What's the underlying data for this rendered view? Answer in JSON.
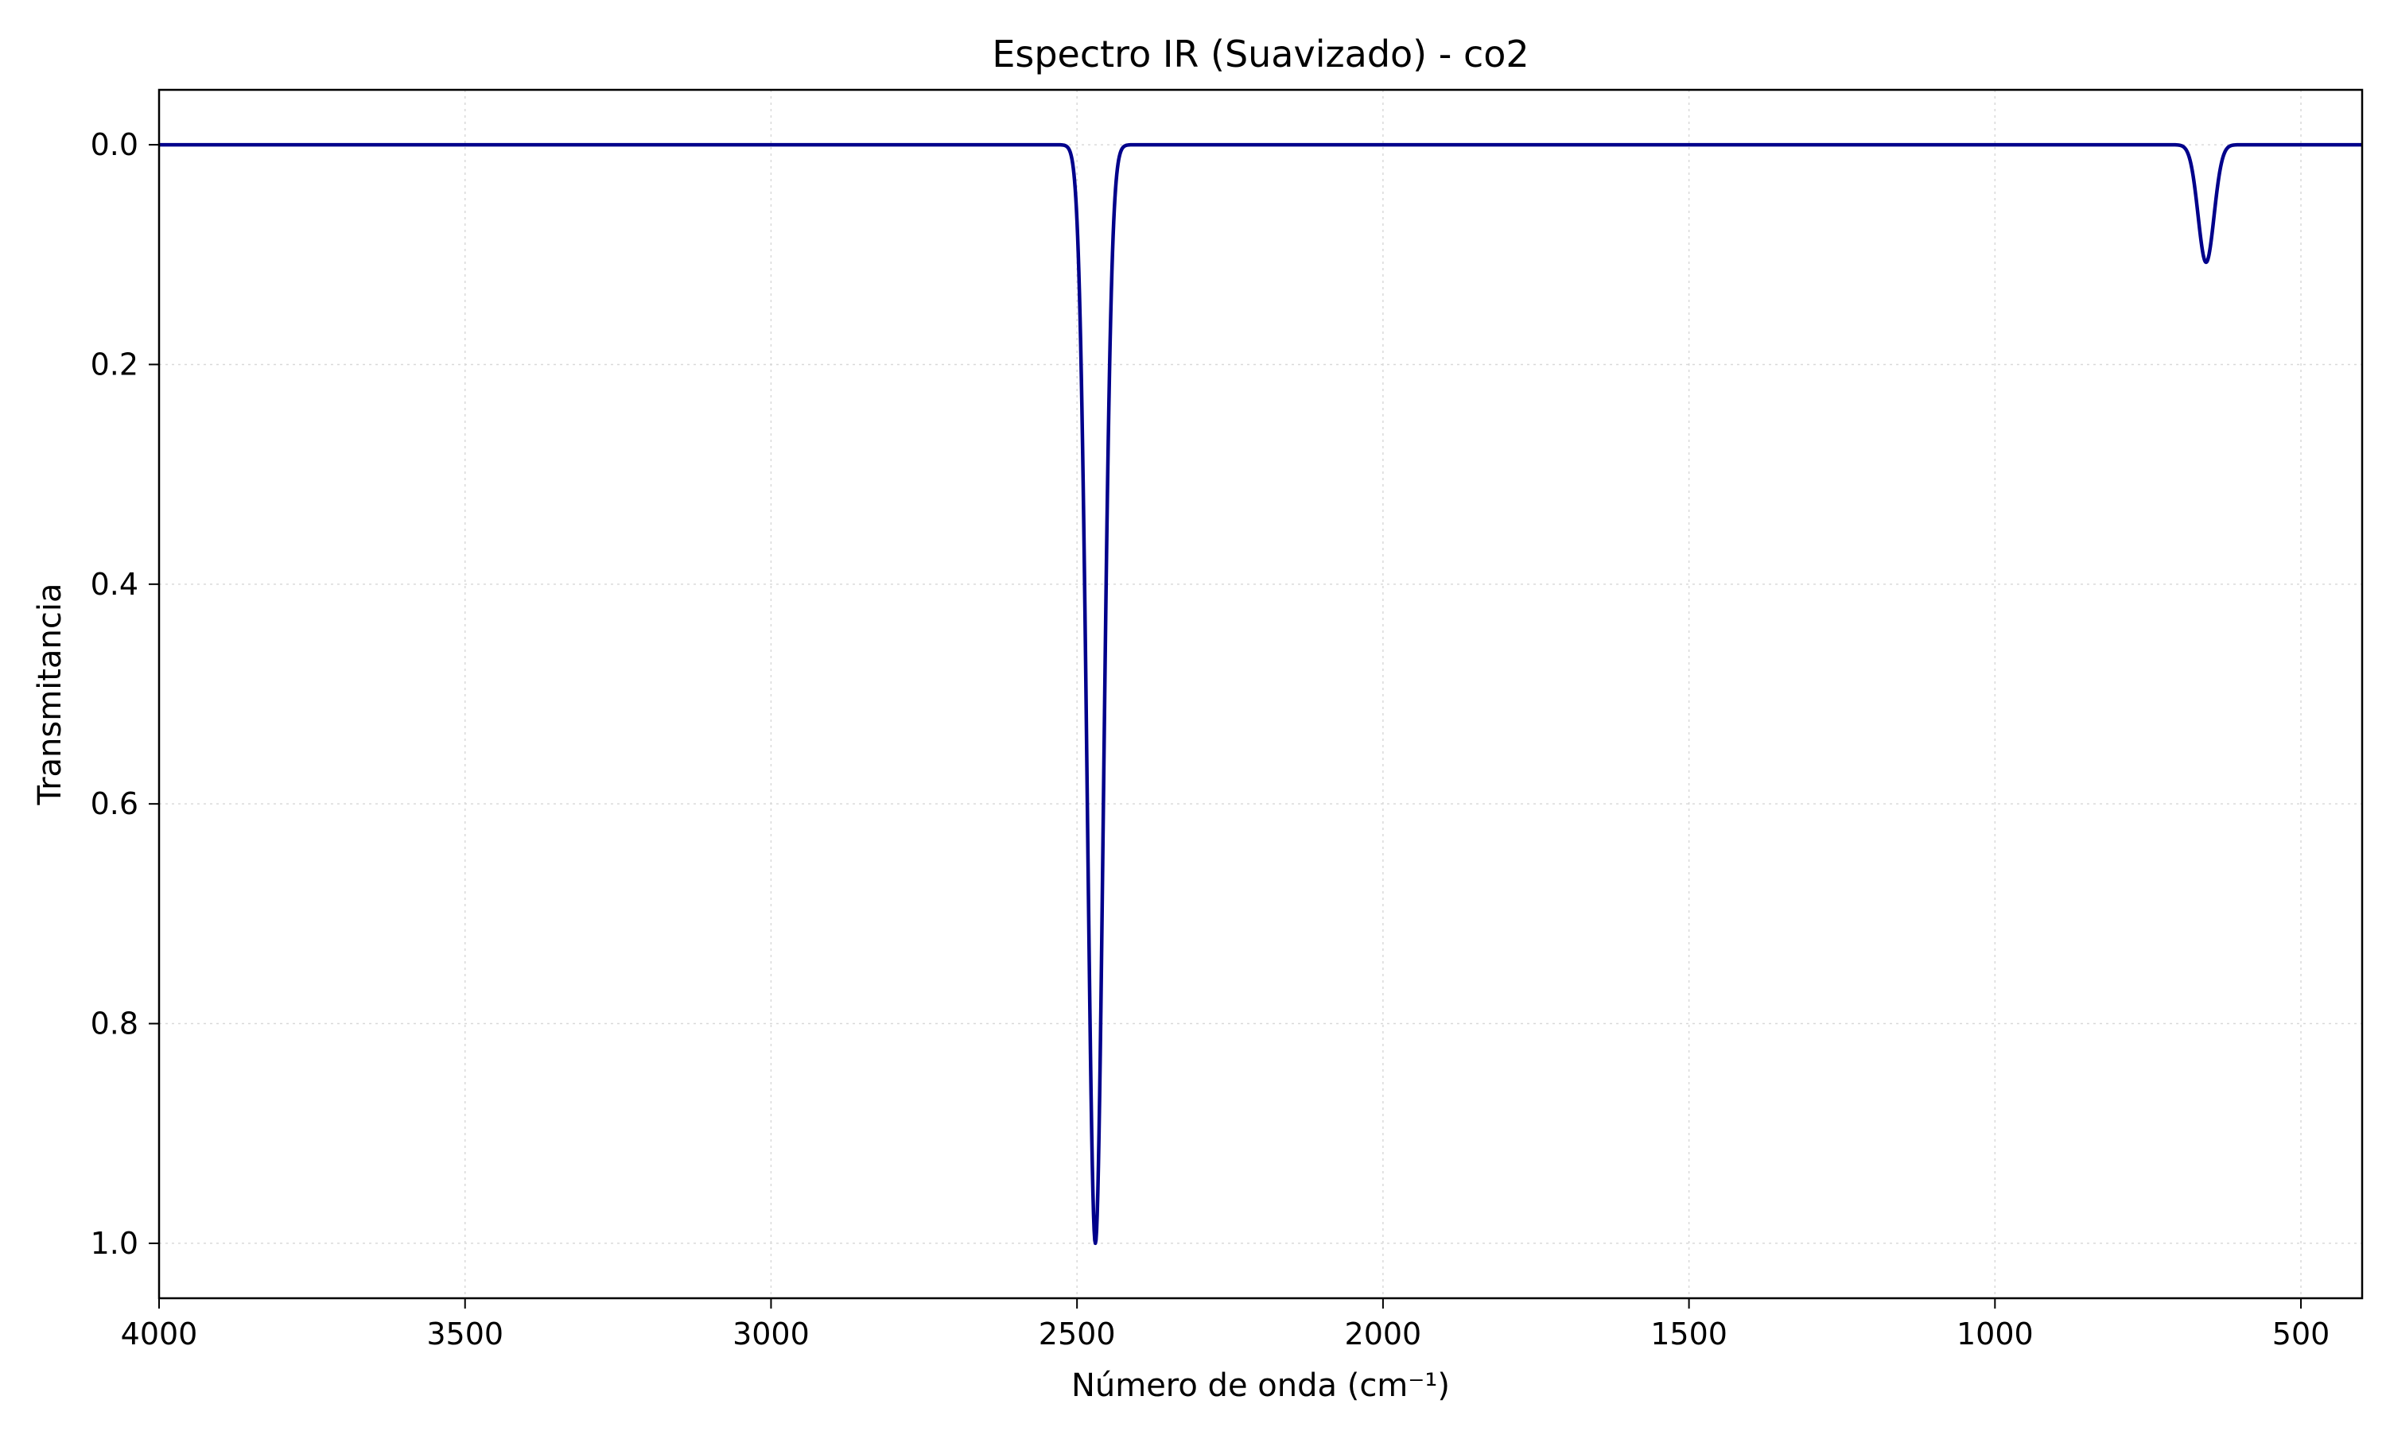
{
  "chart_data": {
    "type": "line",
    "title": "Espectro IR (Suavizado) - co2",
    "xlabel": "Número de onda (cm⁻¹)",
    "ylabel": "Transmitancia",
    "xlim": [
      4000,
      400
    ],
    "ylim": [
      1.05,
      -0.05
    ],
    "x_inverted": true,
    "y_inverted": true,
    "grid": true,
    "xticks": [
      4000,
      3500,
      3000,
      2500,
      2000,
      1500,
      1000,
      500
    ],
    "yticks": [
      0.0,
      0.2,
      0.4,
      0.6,
      0.8,
      1.0
    ],
    "xtick_labels": [
      "4000",
      "3500",
      "3000",
      "2500",
      "2000",
      "1500",
      "1000",
      "500"
    ],
    "ytick_labels": [
      "0.0",
      "0.2",
      "0.4",
      "0.6",
      "0.8",
      "1.0"
    ],
    "line_color": "#00008b",
    "grid_color": "#d9d9d9",
    "series": [
      {
        "peaks": [
          {
            "center": 2470,
            "depth": 1.0,
            "width": 13
          },
          {
            "center": 655,
            "depth": 0.107,
            "width": 13
          }
        ],
        "baseline": 0.0,
        "range": [
          4000,
          400
        ]
      }
    ]
  }
}
